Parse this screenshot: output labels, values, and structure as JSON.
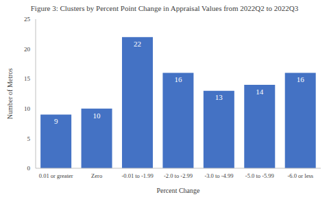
{
  "chart_data": {
    "type": "bar",
    "title": "Figure 3: Clusters by Percent Point Change in Appraisal Values from 2022Q2 to 2022Q3",
    "x_label": "Percent Change",
    "y_label": "Number of Metros",
    "categories": [
      "0.01 or greater",
      "Zero",
      "-0.01 to -1.99",
      "-2.0 to -2.99",
      "-3.0 to -4.99",
      "-5.0 to -5.99",
      "-6.0 or less"
    ],
    "values": [
      9,
      10,
      22,
      16,
      13,
      14,
      16
    ],
    "color": "#4472c4",
    "ylim": [
      0,
      25
    ],
    "yticks": [
      0,
      5,
      10,
      15,
      20,
      25
    ],
    "grid": false,
    "data_labels": true
  }
}
